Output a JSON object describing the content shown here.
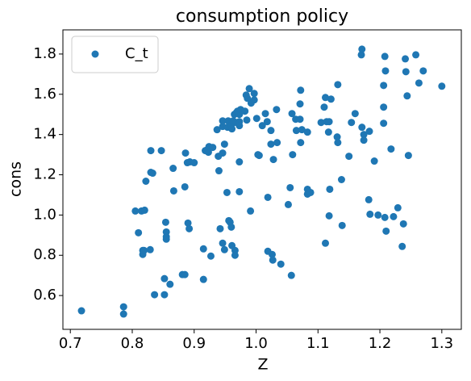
{
  "chart_data": {
    "type": "scatter",
    "title": "consumption policy",
    "x_label": "Z",
    "y_label": "cons",
    "x": [
      0.718,
      0.786,
      0.786,
      0.805,
      0.815,
      0.82,
      0.81,
      0.817,
      0.817,
      0.819,
      0.822,
      0.829,
      0.83,
      0.833,
      0.83,
      0.836,
      0.852,
      0.847,
      0.852,
      0.854,
      0.855,
      0.855,
      0.855,
      0.861,
      0.867,
      0.866,
      0.881,
      0.885,
      0.885,
      0.886,
      0.889,
      0.89,
      0.893,
      0.9,
      0.892,
      0.915,
      0.918,
      0.921,
      0.923,
      0.915,
      0.924,
      0.93,
      0.94,
      0.927,
      0.939,
      0.937,
      0.942,
      0.946,
      0.946,
      0.946,
      0.949,
      0.946,
      0.949,
      0.953,
      0.954,
      0.955,
      0.96,
      0.956,
      0.958,
      0.96,
      0.961,
      0.961,
      0.966,
      0.966,
      0.963,
      0.965,
      0.968,
      0.968,
      0.973,
      0.97,
      0.973,
      0.973,
      0.973,
      0.973,
      0.975,
      0.982,
      0.986,
      0.984,
      0.985,
      0.989,
      0.991,
      0.992,
      0.997,
      0.997,
      1.001,
      1.003,
      1.01,
      1.005,
      1.015,
      1.018,
      1.019,
      1.019,
      1.024,
      1.024,
      1.026,
      1.027,
      1.028,
      1.033,
      1.034,
      1.04,
      1.052,
      1.055,
      1.057,
      1.058,
      1.059,
      1.065,
      1.064,
      1.071,
      1.071,
      1.072,
      1.074,
      1.072,
      1.083,
      1.083,
      1.083,
      1.088,
      1.105,
      1.114,
      1.112,
      1.11,
      1.112,
      1.117,
      1.118,
      1.119,
      1.118,
      1.121,
      1.131,
      1.132,
      1.132,
      1.138,
      1.139,
      1.15,
      1.154,
      1.16,
      1.17,
      1.171,
      1.171,
      1.174,
      1.174,
      1.183,
      1.182,
      1.184,
      1.191,
      1.197,
      1.206,
      1.206,
      1.206,
      1.208,
      1.21,
      1.208,
      1.209,
      1.218,
      1.222,
      1.229,
      1.236,
      1.238,
      1.241,
      1.242,
      1.244,
      1.246,
      1.258,
      1.263,
      1.27,
      1.3
    ],
    "series": [
      {
        "name": "C_t",
        "color": "#1f77b4",
        "values": [
          0.524,
          0.544,
          0.508,
          1.02,
          1.02,
          1.024,
          0.912,
          0.824,
          0.804,
          0.824,
          1.168,
          0.828,
          1.212,
          1.208,
          1.32,
          0.604,
          0.604,
          1.32,
          0.684,
          0.964,
          0.892,
          0.88,
          0.916,
          0.656,
          1.12,
          1.232,
          0.704,
          0.704,
          1.14,
          1.308,
          1.26,
          0.96,
          1.264,
          1.26,
          0.932,
          0.832,
          1.32,
          1.324,
          1.312,
          0.68,
          1.34,
          1.336,
          1.22,
          0.796,
          1.292,
          1.424,
          0.932,
          1.308,
          1.44,
          1.468,
          1.352,
          0.86,
          0.828,
          1.112,
          1.436,
          1.468,
          1.444,
          0.972,
          0.964,
          0.94,
          0.848,
          1.428,
          0.824,
          0.8,
          1.468,
          1.5,
          1.46,
          1.508,
          1.5,
          1.516,
          1.464,
          1.264,
          1.444,
          1.116,
          1.524,
          1.516,
          1.58,
          1.596,
          1.472,
          1.628,
          1.02,
          1.556,
          1.604,
          1.572,
          1.48,
          1.3,
          1.444,
          1.296,
          1.504,
          1.464,
          1.088,
          0.82,
          1.42,
          1.352,
          0.804,
          0.776,
          1.276,
          1.524,
          1.36,
          0.756,
          1.052,
          1.136,
          0.7,
          1.504,
          1.3,
          1.42,
          1.476,
          1.552,
          1.476,
          1.62,
          1.424,
          1.36,
          1.412,
          1.128,
          1.104,
          1.112,
          1.46,
          1.464,
          0.86,
          1.536,
          1.584,
          1.412,
          1.464,
          1.128,
          0.996,
          1.576,
          1.388,
          1.36,
          1.648,
          1.176,
          0.948,
          1.292,
          1.46,
          1.504,
          1.796,
          1.824,
          1.436,
          1.4,
          1.372,
          1.416,
          1.076,
          1.004,
          1.268,
          1,
          1.644,
          1.536,
          1.456,
          0.988,
          0.92,
          1.788,
          1.716,
          1.328,
          0.992,
          1.036,
          0.844,
          0.956,
          1.776,
          1.712,
          1.592,
          1.296,
          1.796,
          1.656,
          1.716,
          1.64
        ]
      }
    ],
    "xlim": [
      0.688,
      1.3315
    ],
    "ylim": [
      0.432,
      1.92
    ],
    "xticks": [
      0.7,
      0.8,
      0.9,
      {
        "value": 1,
        "label": "1.0"
      },
      1.1,
      1.2,
      1.3
    ],
    "yticks": [
      0.6,
      0.8,
      {
        "value": 1,
        "label": "1.0"
      },
      1.2,
      1.4,
      1.6,
      1.8
    ],
    "legend": "upper left"
  }
}
